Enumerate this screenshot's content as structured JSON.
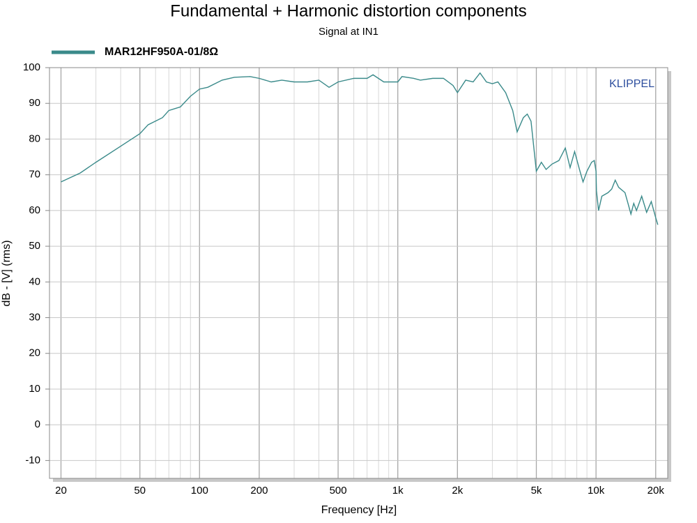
{
  "chart_data": {
    "type": "line",
    "title": "Fundamental + Harmonic distortion components",
    "subtitle": "Signal at IN1",
    "xlabel": "Frequency [Hz]",
    "ylabel": "dB - [V]  (rms)",
    "annotation": "KLIPPEL",
    "xscale": "log",
    "grid": true,
    "legend": "top-left",
    "xlim": [
      17.5,
      23000
    ],
    "ylim": [
      -15,
      100
    ],
    "xticks": [
      20,
      50,
      100,
      200,
      500,
      {
        "value": 1000,
        "label": "1k"
      },
      {
        "value": 2000,
        "label": "2k"
      },
      {
        "value": 5000,
        "label": "5k"
      },
      {
        "value": 10000,
        "label": "10k"
      },
      {
        "value": 20000,
        "label": "20k"
      }
    ],
    "yticks": [
      -10,
      0,
      10,
      20,
      30,
      40,
      50,
      60,
      70,
      80,
      90,
      100
    ],
    "x": [
      20,
      25,
      30,
      40,
      50,
      55,
      65,
      70,
      80,
      90,
      100,
      110,
      130,
      150,
      180,
      200,
      230,
      260,
      300,
      350,
      400,
      450,
      500,
      600,
      700,
      750,
      850,
      1000,
      1050,
      1200,
      1300,
      1500,
      1700,
      1900,
      2000,
      2200,
      2400,
      2600,
      2800,
      3000,
      3200,
      3500,
      3800,
      4000,
      4300,
      4500,
      4700,
      5000,
      5300,
      5600,
      6000,
      6500,
      7000,
      7400,
      7800,
      8300,
      8600,
      9000,
      9500,
      9800,
      10000,
      10050,
      10300,
      10700,
      11500,
      12000,
      12500,
      13000,
      14000,
      14500,
      15000,
      15500,
      16000,
      17000,
      18000,
      19000,
      20000,
      20500
    ],
    "series": [
      {
        "name": "MAR12HF950A-01/8Ω",
        "color": "#3a8a8a",
        "values": [
          68,
          70.5,
          73.5,
          78,
          81.5,
          84,
          86,
          88,
          89,
          92,
          94,
          94.5,
          96.5,
          97.3,
          97.5,
          97,
          96,
          96.5,
          96,
          96,
          96.5,
          94.5,
          96,
          97,
          97,
          98,
          96,
          96,
          97.5,
          97,
          96.5,
          97,
          97,
          95,
          93,
          96.5,
          96,
          98.5,
          96,
          95.5,
          96,
          93,
          88,
          82,
          86,
          87,
          85,
          71,
          73.5,
          71.5,
          73,
          74,
          77.5,
          72,
          76.5,
          71,
          68,
          71,
          73.5,
          74,
          71,
          65.5,
          60,
          64,
          65,
          66,
          68.5,
          66.5,
          65,
          62,
          59,
          62,
          60,
          64,
          59.5,
          62.5,
          58,
          56
        ]
      }
    ]
  }
}
